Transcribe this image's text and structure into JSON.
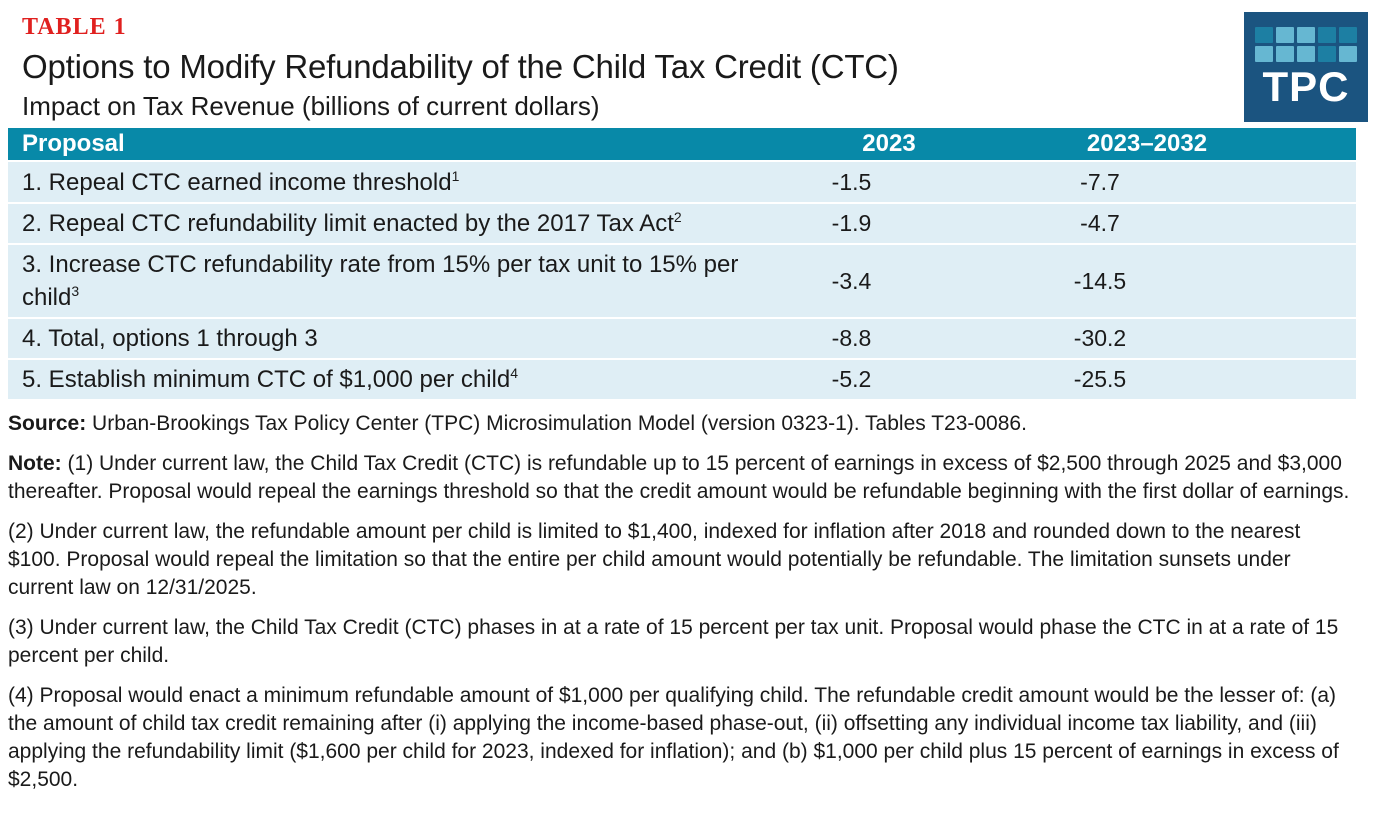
{
  "header": {
    "table_label": "TABLE 1",
    "title": "Options to Modify Refundability of the Child Tax Credit (CTC)",
    "subtitle": "Impact on Tax Revenue (billions of current dollars)"
  },
  "logo": {
    "text": "TPC",
    "background": "#1b5480",
    "square_colors": {
      "dark": "#1d7fa3",
      "light": "#66b7d2"
    },
    "grid": [
      [
        "dark",
        "light",
        "light",
        "dark",
        "dark"
      ],
      [
        "light",
        "light",
        "light",
        "dark",
        "light"
      ]
    ]
  },
  "colors": {
    "table_label_red": "#e0201f",
    "header_teal": "#0889a8",
    "row_light_blue": "#dfeef5"
  },
  "table": {
    "columns": [
      "Proposal",
      "2023",
      "2023–2032"
    ],
    "rows": [
      {
        "label": "1. Repeal CTC earned income threshold",
        "sup": "1",
        "y2023": "-1.5",
        "y2023_2032": "-7.7"
      },
      {
        "label": "2. Repeal CTC refundability limit enacted by the 2017 Tax Act",
        "sup": "2",
        "y2023": "-1.9",
        "y2023_2032": "-4.7"
      },
      {
        "label": "3. Increase CTC refundability rate from 15% per tax unit to 15% per child",
        "sup": "3",
        "y2023": "-3.4",
        "y2023_2032": "-14.5"
      },
      {
        "label": "4. Total, options 1 through 3",
        "sup": "",
        "y2023": "-8.8",
        "y2023_2032": "-30.2"
      },
      {
        "label": "5. Establish minimum CTC of $1,000 per child",
        "sup": "4",
        "y2023": "-5.2",
        "y2023_2032": "-25.5"
      }
    ]
  },
  "chart_data": {
    "type": "table",
    "title": "Options to Modify Refundability of the Child Tax Credit (CTC)",
    "subtitle": "Impact on Tax Revenue (billions of current dollars)",
    "columns": [
      "Proposal",
      "2023",
      "2023–2032"
    ],
    "rows": [
      [
        "1. Repeal CTC earned income threshold",
        -1.5,
        -7.7
      ],
      [
        "2. Repeal CTC refundability limit enacted by the 2017 Tax Act",
        -1.9,
        -4.7
      ],
      [
        "3. Increase CTC refundability rate from 15% per tax unit to 15% per child",
        -3.4,
        -14.5
      ],
      [
        "4. Total, options 1 through 3",
        -8.8,
        -30.2
      ],
      [
        "5. Establish minimum CTC of $1,000 per child",
        -5.2,
        -25.5
      ]
    ]
  },
  "source": {
    "label": "Source:",
    "text": "Urban-Brookings Tax Policy Center (TPC) Microsimulation Model (version 0323-1). Tables T23-0086."
  },
  "notes": [
    {
      "lead": "Note:",
      "text": "(1) Under current law, the Child Tax Credit (CTC) is refundable up to 15 percent of earnings in excess of $2,500 through 2025 and $3,000 thereafter. Proposal would repeal the earnings threshold so that the credit amount would be refundable beginning with the first dollar of earnings."
    },
    {
      "lead": "",
      "text": "(2) Under current law, the refundable amount per child is limited to $1,400, indexed for inflation after 2018 and rounded down to the nearest $100. Proposal would repeal the limitation so that the entire per child amount would potentially be refundable. The limitation sunsets under current law on 12/31/2025."
    },
    {
      "lead": "",
      "text": "(3) Under current law, the Child Tax Credit (CTC) phases in at a rate of 15 percent per tax unit. Proposal would phase the CTC in at a rate of 15 percent per child."
    },
    {
      "lead": "",
      "text": "(4) Proposal would enact a minimum refundable amount of $1,000 per qualifying child. The refundable credit amount would be the lesser of: (a) the amount of child tax credit remaining after (i) applying the income-based phase-out, (ii) offsetting any individual income tax liability, and (iii) applying the refundability limit ($1,600 per child for 2023, indexed for inflation); and (b) $1,000 per child plus 15 percent of earnings in excess of $2,500."
    }
  ]
}
